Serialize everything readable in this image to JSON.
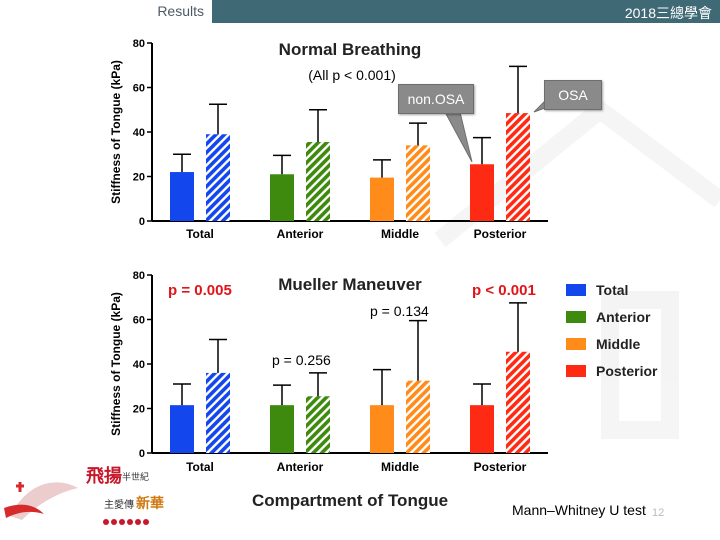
{
  "header": {
    "section": "Results",
    "event": "2018三總學會"
  },
  "chart_data": [
    {
      "type": "bar",
      "title": "Normal Breathing",
      "subtitle": "(All p < 0.001)",
      "ylabel": "Stiffness of Tongue (kPa)",
      "xlabel": "",
      "ylim": [
        0,
        80
      ],
      "yticks": [
        0,
        20,
        40,
        60,
        80
      ],
      "categories": [
        "Total",
        "Anterior",
        "Middle",
        "Posterior"
      ],
      "colors": [
        "#1446ee",
        "#3e8a0e",
        "#ff8c1a",
        "#ff2a14"
      ],
      "series": [
        {
          "name": "non.OSA",
          "pattern": "solid",
          "values": [
            22,
            21,
            19.5,
            25.5
          ],
          "errors": [
            8,
            8.5,
            8,
            12
          ]
        },
        {
          "name": "OSA",
          "pattern": "hatched",
          "values": [
            39,
            35.5,
            34,
            48.5
          ],
          "errors": [
            13.5,
            14.5,
            10,
            21
          ]
        }
      ],
      "callouts": [
        "non.OSA",
        "OSA"
      ]
    },
    {
      "type": "bar",
      "title": "Mueller Maneuver",
      "ylabel": "Stiffness of Tongue (kPa)",
      "xlabel": "Compartment of Tongue",
      "ylim": [
        0,
        80
      ],
      "yticks": [
        0,
        20,
        40,
        60,
        80
      ],
      "categories": [
        "Total",
        "Anterior",
        "Middle",
        "Posterior"
      ],
      "colors": [
        "#1446ee",
        "#3e8a0e",
        "#ff8c1a",
        "#ff2a14"
      ],
      "series": [
        {
          "name": "non.OSA",
          "pattern": "solid",
          "values": [
            21.5,
            21.5,
            21.5,
            21.5
          ],
          "errors": [
            9.5,
            9,
            16,
            9.5
          ]
        },
        {
          "name": "OSA",
          "pattern": "hatched",
          "values": [
            36,
            25.5,
            32.5,
            45.5
          ],
          "errors": [
            15,
            10.5,
            27,
            22
          ]
        }
      ],
      "p_values": [
        "p = 0.005",
        "p = 0.256",
        "p = 0.134",
        "p < 0.001"
      ],
      "legend": {
        "position": "right",
        "entries": [
          "Total",
          "Anterior",
          "Middle",
          "Posterior"
        ]
      }
    }
  ],
  "footnote": "Mann–Whitney U test",
  "page_number": "12",
  "logo": {
    "text_main": "飛揚",
    "text_sub1": "半世紀",
    "text_sub2": "主愛傳",
    "text_sub3": "新華"
  }
}
